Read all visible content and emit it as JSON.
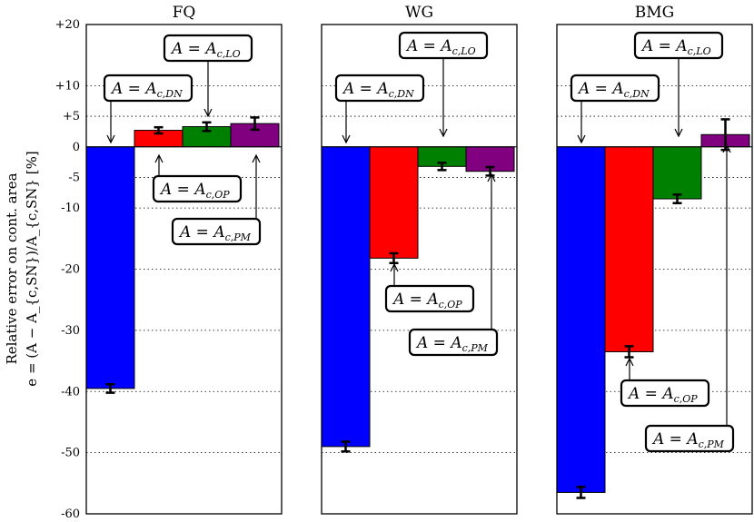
{
  "chart_data": {
    "type": "bar",
    "ylabel_line1": "Relative error on cont. area",
    "ylabel_line2": "e = (A − A_{c,SN})/A_{c,SN} [%]",
    "ylim": [
      -60,
      20
    ],
    "yticks": [
      {
        "value": 20,
        "label": "+20"
      },
      {
        "value": 10,
        "label": "+10"
      },
      {
        "value": 5,
        "label": "+5"
      },
      {
        "value": 0,
        "label": "0"
      },
      {
        "value": -5,
        "label": "-5"
      },
      {
        "value": -10,
        "label": "-10"
      },
      {
        "value": -20,
        "label": "-20"
      },
      {
        "value": -30,
        "label": "-30"
      },
      {
        "value": -40,
        "label": "-40"
      },
      {
        "value": -50,
        "label": "-50"
      },
      {
        "value": -60,
        "label": "-60"
      }
    ],
    "grid": "horizontal-dotted",
    "colors": {
      "DN": "#0000ff",
      "OP": "#ff0000",
      "LO": "#008000",
      "PM": "#800080"
    },
    "series_keys": [
      "DN",
      "OP",
      "LO",
      "PM"
    ],
    "panels": [
      {
        "title": "FQ",
        "bars": [
          {
            "key": "DN",
            "value": -39.5,
            "err": 0.7
          },
          {
            "key": "OP",
            "value": 2.7,
            "err": 0.5
          },
          {
            "key": "LO",
            "value": 3.3,
            "err": 0.7
          },
          {
            "key": "PM",
            "value": 3.8,
            "err": 1.0
          }
        ],
        "annotations": [
          {
            "label": "A = A",
            "sub": "c,DN"
          },
          {
            "label": "A = A",
            "sub": "c,LO"
          },
          {
            "label": "A = A",
            "sub": "c,OP"
          },
          {
            "label": "A = A",
            "sub": "c,PM"
          }
        ]
      },
      {
        "title": "WG",
        "bars": [
          {
            "key": "DN",
            "value": -49.0,
            "err": 0.8
          },
          {
            "key": "OP",
            "value": -18.2,
            "err": 0.8
          },
          {
            "key": "LO",
            "value": -3.2,
            "err": 0.6
          },
          {
            "key": "PM",
            "value": -4.0,
            "err": 0.7
          }
        ],
        "annotations": [
          {
            "label": "A = A",
            "sub": "c,DN"
          },
          {
            "label": "A = A",
            "sub": "c,LO"
          },
          {
            "label": "A = A",
            "sub": "c,OP"
          },
          {
            "label": "A = A",
            "sub": "c,PM"
          }
        ]
      },
      {
        "title": "BMG",
        "bars": [
          {
            "key": "DN",
            "value": -56.5,
            "err": 0.9
          },
          {
            "key": "OP",
            "value": -33.5,
            "err": 0.9
          },
          {
            "key": "LO",
            "value": -8.5,
            "err": 0.7
          },
          {
            "key": "PM",
            "value": 2.0,
            "err": 2.5
          }
        ],
        "annotations": [
          {
            "label": "A = A",
            "sub": "c,DN"
          },
          {
            "label": "A = A",
            "sub": "c,LO"
          },
          {
            "label": "A = A",
            "sub": "c,OP"
          },
          {
            "label": "A = A",
            "sub": "c,PM"
          }
        ]
      }
    ]
  }
}
